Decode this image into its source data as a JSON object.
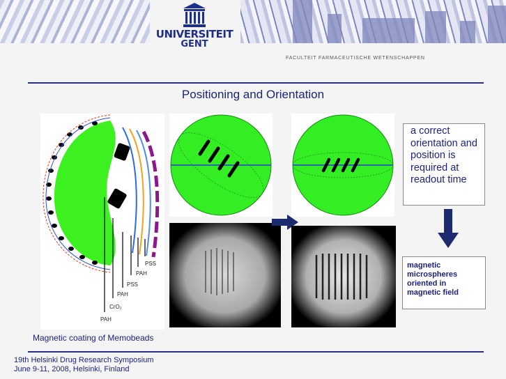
{
  "header": {
    "logo_line1": "UNIVERSITEIT",
    "logo_line2": "GENT",
    "faculty": "Faculteit Farmaceutische Wetenschappen"
  },
  "slide": {
    "title": "Positioning and Orientation",
    "caption": "Magnetic  coating of Memobeads",
    "note_text": "a correct orientation and position is required at readout time",
    "result_text": "magnetic microspheres oriented in magnetic field"
  },
  "diagram": {
    "layer_labels": [
      "PSS",
      "PAH",
      "PSS",
      "PAH",
      "CrO₂",
      "PAH"
    ]
  },
  "footer": {
    "line1": "19th Helsinki Drug Research  Symposium",
    "line2": "June 9-11, 2008, Helsinki, Finland"
  },
  "colors": {
    "accent": "#1d237a",
    "sphere_green": "#33ee22"
  }
}
